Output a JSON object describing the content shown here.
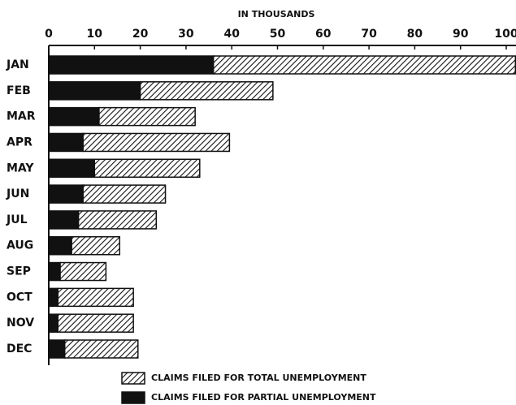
{
  "chart_data": {
    "type": "stacked-barh",
    "title": "IN THOUSANDS",
    "categories": [
      "JAN",
      "FEB",
      "MAR",
      "APR",
      "MAY",
      "JUN",
      "JUL",
      "AUG",
      "SEP",
      "OCT",
      "NOV",
      "DEC"
    ],
    "series": [
      {
        "name": "CLAIMS FILED FOR PARTIAL UNEMPLOYMENT",
        "color": "#111111",
        "hatch": false,
        "values": [
          36,
          20,
          11,
          7.5,
          10,
          7.5,
          6.5,
          5,
          2.5,
          2,
          2,
          3.5
        ]
      },
      {
        "name": "CLAIMS FILED FOR TOTAL UNEMPLOYMENT",
        "color": "#111111",
        "hatch": true,
        "values": [
          66,
          29,
          21,
          32,
          23,
          18,
          17,
          10.5,
          10,
          16.5,
          16.5,
          16
        ]
      }
    ],
    "legend_order": [
      1,
      0
    ],
    "xlim": [
      0,
      100
    ],
    "xticks": [
      0,
      10,
      20,
      30,
      40,
      50,
      60,
      70,
      80,
      90,
      100
    ]
  }
}
